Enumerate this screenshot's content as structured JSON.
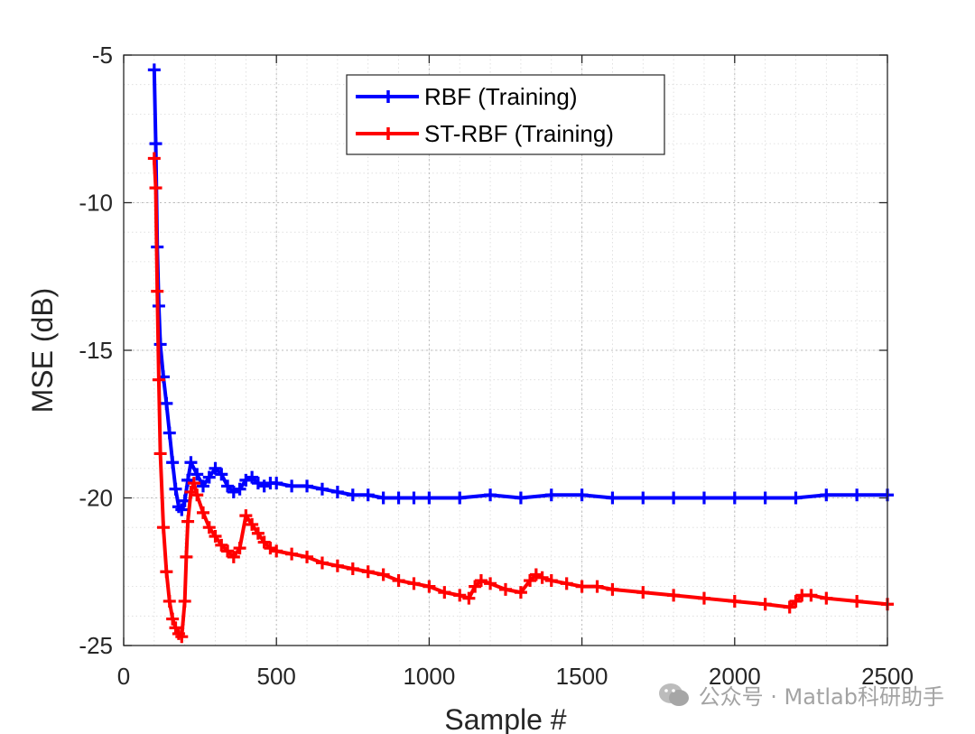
{
  "chart_data": {
    "type": "line",
    "title": "",
    "xlabel": "Sample #",
    "ylabel": "MSE (dB)",
    "xlim": [
      0,
      2500
    ],
    "ylim": [
      -25,
      -5
    ],
    "xticks": [
      0,
      500,
      1000,
      1500,
      2000,
      2500
    ],
    "yticks": [
      -25,
      -20,
      -15,
      -10,
      -5
    ],
    "grid": true,
    "legend_position": "top-center",
    "series": [
      {
        "name": "RBF (Training)",
        "color": "#0000ff",
        "marker": "+",
        "x": [
          100,
          105,
          110,
          115,
          120,
          130,
          140,
          150,
          160,
          170,
          180,
          190,
          200,
          210,
          220,
          240,
          260,
          280,
          300,
          320,
          340,
          360,
          380,
          400,
          420,
          440,
          460,
          480,
          500,
          550,
          600,
          650,
          700,
          750,
          800,
          850,
          900,
          950,
          1000,
          1100,
          1200,
          1300,
          1400,
          1500,
          1600,
          1700,
          1800,
          1900,
          2000,
          2100,
          2200,
          2300,
          2400,
          2500
        ],
        "values": [
          -5.5,
          -8.0,
          -11.5,
          -13.5,
          -14.8,
          -15.9,
          -16.8,
          -17.8,
          -18.8,
          -19.7,
          -20.3,
          -20.4,
          -20.1,
          -19.4,
          -18.8,
          -19.2,
          -19.6,
          -19.3,
          -19.0,
          -19.2,
          -19.6,
          -19.8,
          -19.7,
          -19.4,
          -19.3,
          -19.5,
          -19.6,
          -19.5,
          -19.5,
          -19.6,
          -19.6,
          -19.7,
          -19.8,
          -19.9,
          -19.9,
          -20.0,
          -20.0,
          -20.0,
          -20.0,
          -20.0,
          -19.9,
          -20.0,
          -19.9,
          -19.9,
          -20.0,
          -20.0,
          -20.0,
          -20.0,
          -20.0,
          -20.0,
          -20.0,
          -19.9,
          -19.9,
          -19.9
        ]
      },
      {
        "name": "ST-RBF (Training)",
        "color": "#ff0000",
        "marker": "+",
        "x": [
          100,
          105,
          110,
          115,
          120,
          130,
          140,
          150,
          160,
          170,
          180,
          190,
          200,
          205,
          210,
          220,
          230,
          240,
          260,
          280,
          300,
          320,
          340,
          360,
          380,
          400,
          420,
          440,
          460,
          480,
          500,
          550,
          600,
          650,
          700,
          750,
          800,
          850,
          900,
          950,
          1000,
          1050,
          1100,
          1130,
          1150,
          1170,
          1200,
          1250,
          1300,
          1330,
          1350,
          1370,
          1400,
          1450,
          1500,
          1550,
          1600,
          1700,
          1800,
          1900,
          2000,
          2100,
          2180,
          2200,
          2220,
          2250,
          2300,
          2400,
          2500
        ],
        "values": [
          -8.5,
          -9.5,
          -13.0,
          -16.0,
          -18.5,
          -21.0,
          -22.5,
          -23.5,
          -24.1,
          -24.4,
          -24.6,
          -24.7,
          -23.5,
          -22.0,
          -20.8,
          -19.8,
          -19.5,
          -19.9,
          -20.5,
          -21.0,
          -21.3,
          -21.6,
          -21.8,
          -22.0,
          -21.7,
          -20.6,
          -20.9,
          -21.2,
          -21.5,
          -21.7,
          -21.8,
          -21.9,
          -22.0,
          -22.2,
          -22.3,
          -22.4,
          -22.5,
          -22.6,
          -22.8,
          -22.9,
          -23.0,
          -23.2,
          -23.3,
          -23.4,
          -23.0,
          -22.8,
          -22.9,
          -23.1,
          -23.2,
          -22.8,
          -22.6,
          -22.7,
          -22.8,
          -22.9,
          -23.0,
          -23.0,
          -23.1,
          -23.2,
          -23.3,
          -23.4,
          -23.5,
          -23.6,
          -23.7,
          -23.5,
          -23.3,
          -23.3,
          -23.4,
          -23.5,
          -23.6
        ]
      }
    ]
  },
  "watermark": {
    "text": "公众号 · Matlab科研助手",
    "icon": "wechat-icon"
  }
}
